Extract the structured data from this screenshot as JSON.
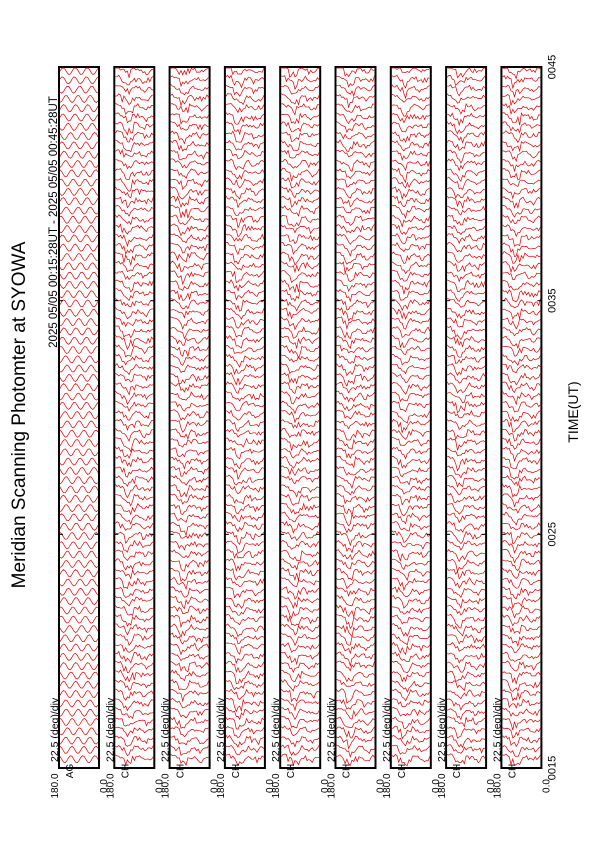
{
  "chart_data": {
    "type": "line",
    "title": "Meridian Scanning Photomter at SYOWA",
    "subtitle": "2025 05/05 00:15:28UT - 2025 05/05 00:45:28UT",
    "xlabel": "TIME(UT)",
    "x_ticks": [
      "0015",
      "0025",
      "0035",
      "0045"
    ],
    "scale_label": "22.5 (deg)/div",
    "panel_ylim": [
      "0.0",
      "180.0"
    ],
    "panels": [
      {
        "channel": "AG",
        "style": "sine"
      },
      {
        "channel": "CH",
        "style": "scan"
      },
      {
        "channel": "CH",
        "style": "scan"
      },
      {
        "channel": "CH",
        "style": "scan"
      },
      {
        "channel": "CH",
        "style": "scan"
      },
      {
        "channel": "CH",
        "style": "scan"
      },
      {
        "channel": "CH",
        "style": "scan"
      },
      {
        "channel": "CH",
        "style": "scan"
      },
      {
        "channel": "CH",
        "style": "scan"
      }
    ],
    "trace_color": "#e00000"
  }
}
